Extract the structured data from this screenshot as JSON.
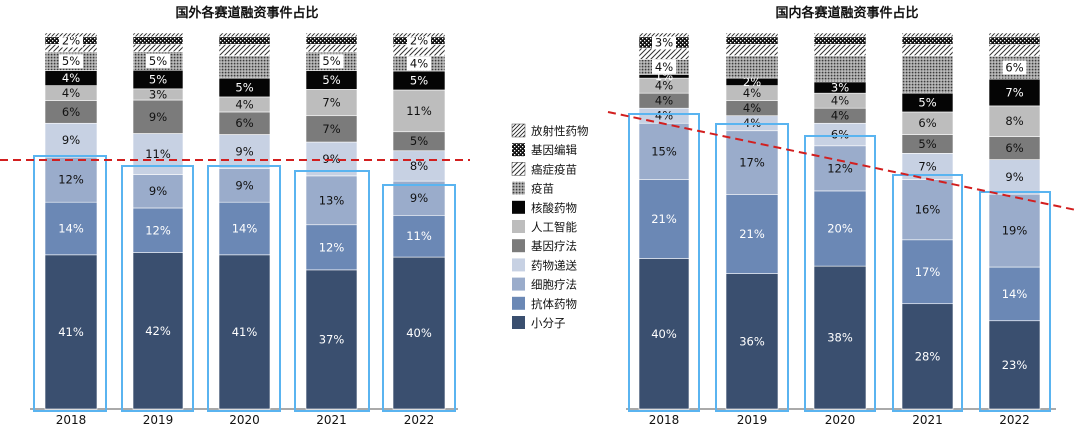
{
  "legend_title": "",
  "legend": [
    {
      "key": "radio",
      "label": "放射性药物"
    },
    {
      "key": "gene_edit",
      "label": "基因编辑"
    },
    {
      "key": "cancer_vaccine",
      "label": "癌症疫苗"
    },
    {
      "key": "vaccine",
      "label": "疫苗"
    },
    {
      "key": "nucleic",
      "label": "核酸药物"
    },
    {
      "key": "ai",
      "label": "人工智能"
    },
    {
      "key": "gene_therapy",
      "label": "基因疗法"
    },
    {
      "key": "delivery",
      "label": "药物递送"
    },
    {
      "key": "cell_therapy",
      "label": "细胞疗法"
    },
    {
      "key": "antibody",
      "label": "抗体药物"
    },
    {
      "key": "small_molecule",
      "label": "小分子"
    }
  ],
  "colors": {
    "small_molecule": "#3a4f6f",
    "antibody": "#6b88b5",
    "cell_therapy": "#9aaccb",
    "delivery": "#c7d1e3",
    "gene_therapy": "#7b7b7b",
    "ai": "#bdbdbd",
    "nucleic": "#050505",
    "highlight_box": "#5ab4f0",
    "trend_line": "#d21f1f"
  },
  "chart_data": [
    {
      "type": "bar",
      "stacked": true,
      "title": "国外各赛道融资事件占比",
      "categories": [
        "2018",
        "2019",
        "2020",
        "2021",
        "2022"
      ],
      "series": [
        {
          "key": "small_molecule",
          "name": "小分子",
          "values": [
            41,
            42,
            41,
            37,
            40
          ],
          "labels": [
            "41%",
            "42%",
            "41%",
            "37%",
            "40%"
          ]
        },
        {
          "key": "antibody",
          "name": "抗体药物",
          "values": [
            14,
            12,
            14,
            12,
            11
          ],
          "labels": [
            "14%",
            "12%",
            "14%",
            "12%",
            "11%"
          ]
        },
        {
          "key": "cell_therapy",
          "name": "细胞疗法",
          "values": [
            12,
            9,
            9,
            13,
            9
          ],
          "labels": [
            "12%",
            "9%",
            "9%",
            "13%",
            "9%"
          ]
        },
        {
          "key": "delivery",
          "name": "药物递送",
          "values": [
            9,
            11,
            9,
            9,
            8
          ],
          "labels": [
            "9%",
            "11%",
            "9%",
            "9%",
            "8%"
          ]
        },
        {
          "key": "gene_therapy",
          "name": "基因疗法",
          "values": [
            6,
            9,
            6,
            7,
            5
          ],
          "labels": [
            "6%",
            "9%",
            "6%",
            "7%",
            "5%"
          ]
        },
        {
          "key": "ai",
          "name": "人工智能",
          "values": [
            4,
            3,
            4,
            7,
            11
          ],
          "labels": [
            "4%",
            "3%",
            "4%",
            "7%",
            "11%"
          ]
        },
        {
          "key": "nucleic",
          "name": "核酸药物",
          "values": [
            4,
            5,
            5,
            5,
            5
          ],
          "labels": [
            "4%",
            "5%",
            "5%",
            "5%",
            "5%"
          ]
        },
        {
          "key": "vaccine",
          "name": "疫苗",
          "values": [
            5,
            5,
            6,
            5,
            4
          ],
          "labels": [
            "5%",
            "5%",
            "",
            "5%",
            "4%"
          ]
        },
        {
          "key": "cancer_vaccine",
          "name": "癌症疫苗",
          "values": [
            2,
            2,
            3,
            2,
            3
          ],
          "labels": [
            "",
            "",
            "",
            "",
            ""
          ]
        },
        {
          "key": "gene_edit",
          "name": "基因编辑",
          "values": [
            2,
            2,
            2,
            2,
            2
          ],
          "labels": [
            "2%",
            "",
            "",
            "",
            "2%"
          ]
        },
        {
          "key": "radio",
          "name": "放射性药物",
          "values": [
            1,
            1,
            1,
            1,
            1
          ],
          "labels": [
            "",
            "",
            "",
            "",
            ""
          ]
        }
      ],
      "ylim": [
        0,
        100
      ],
      "xlabel": "",
      "ylabel": "",
      "grid": false
    },
    {
      "type": "bar",
      "stacked": true,
      "title": "国内各赛道融资事件占比",
      "categories": [
        "2018",
        "2019",
        "2020",
        "2021",
        "2022"
      ],
      "series": [
        {
          "key": "small_molecule",
          "name": "小分子",
          "values": [
            40,
            36,
            38,
            28,
            23
          ],
          "labels": [
            "40%",
            "36%",
            "38%",
            "28%",
            "23%"
          ]
        },
        {
          "key": "antibody",
          "name": "抗体药物",
          "values": [
            21,
            21,
            20,
            17,
            14
          ],
          "labels": [
            "21%",
            "21%",
            "20%",
            "17%",
            "14%"
          ]
        },
        {
          "key": "cell_therapy",
          "name": "细胞疗法",
          "values": [
            15,
            17,
            12,
            16,
            19
          ],
          "labels": [
            "15%",
            "17%",
            "12%",
            "16%",
            "19%"
          ]
        },
        {
          "key": "delivery",
          "name": "药物递送",
          "values": [
            4,
            4,
            6,
            7,
            9
          ],
          "labels": [
            "4%",
            "4%",
            "6%",
            "7%",
            "9%"
          ]
        },
        {
          "key": "gene_therapy",
          "name": "基因疗法",
          "values": [
            4,
            4,
            4,
            5,
            6
          ],
          "labels": [
            "4%",
            "4%",
            "4%",
            "5%",
            "6%"
          ]
        },
        {
          "key": "ai",
          "name": "人工智能",
          "values": [
            4,
            4,
            4,
            6,
            8
          ],
          "labels": [
            "4%",
            "4%",
            "4%",
            "6%",
            "8%"
          ]
        },
        {
          "key": "nucleic",
          "name": "核酸药物",
          "values": [
            1,
            2,
            3,
            5,
            7
          ],
          "labels": [
            "1%",
            "2%",
            "3%",
            "5%",
            "7%"
          ]
        },
        {
          "key": "vaccine",
          "name": "疫苗",
          "values": [
            4,
            6,
            7,
            10,
            6
          ],
          "labels": [
            "4%",
            "",
            "",
            "",
            "6%"
          ]
        },
        {
          "key": "cancer_vaccine",
          "name": "癌症疫苗",
          "values": [
            3,
            3,
            3,
            3,
            3
          ],
          "labels": [
            "",
            "",
            "",
            "",
            ""
          ]
        },
        {
          "key": "gene_edit",
          "name": "基因编辑",
          "values": [
            3,
            2,
            2,
            2,
            2
          ],
          "labels": [
            "3%",
            "",
            "",
            "",
            ""
          ]
        },
        {
          "key": "radio",
          "name": "放射性药物",
          "values": [
            1,
            1,
            1,
            1,
            1
          ],
          "labels": [
            "",
            "",
            "",
            "",
            ""
          ]
        }
      ],
      "ylim": [
        0,
        100
      ],
      "xlabel": "",
      "ylabel": "",
      "grid": false
    }
  ]
}
